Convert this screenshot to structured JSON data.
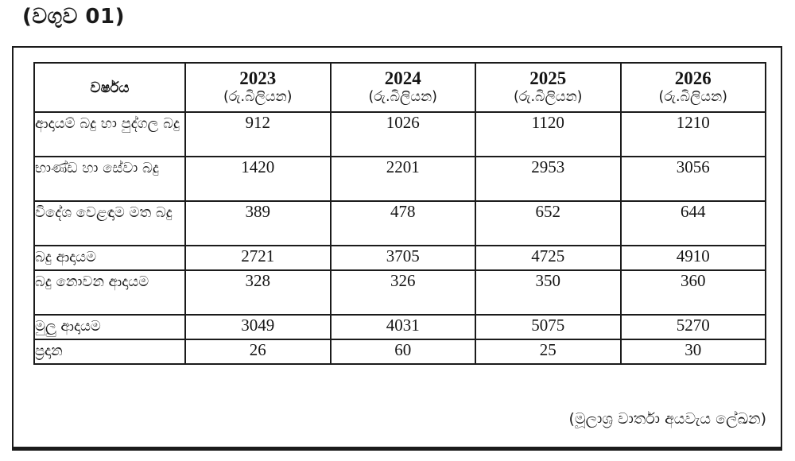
{
  "page": {
    "title": "(වගුව 01)",
    "source_note": "(මූලාශ්‍ර වාර්තා අයවැය ලේඛන)"
  },
  "table": {
    "year_column_header": "වර්ෂය",
    "unit_label": "(රු.බිලියන)",
    "years": [
      "2023",
      "2024",
      "2025",
      "2026"
    ],
    "rows": [
      {
        "label": "ආදායම් බදු හා පුද්ගල බදු",
        "values": [
          "912",
          "1026",
          "1120",
          "1210"
        ]
      },
      {
        "label": "භාණ්ඩ හා සේවා බදු",
        "values": [
          "1420",
          "2201",
          "2953",
          "3056"
        ]
      },
      {
        "label": "විදේශ වෙළඳාම මත බදු",
        "values": [
          "389",
          "478",
          "652",
          "644"
        ]
      },
      {
        "label": "බදු ආදායම",
        "values": [
          "2721",
          "3705",
          "4725",
          "4910"
        ]
      },
      {
        "label": "බදු නොවන ආදායම",
        "values": [
          "328",
          "326",
          "350",
          "360"
        ]
      },
      {
        "label": "මුලු ආදායම",
        "values": [
          "3049",
          "4031",
          "5075",
          "5270"
        ]
      },
      {
        "label": "ප්‍රදාන",
        "values": [
          "26",
          "60",
          "25",
          "30"
        ]
      }
    ]
  }
}
